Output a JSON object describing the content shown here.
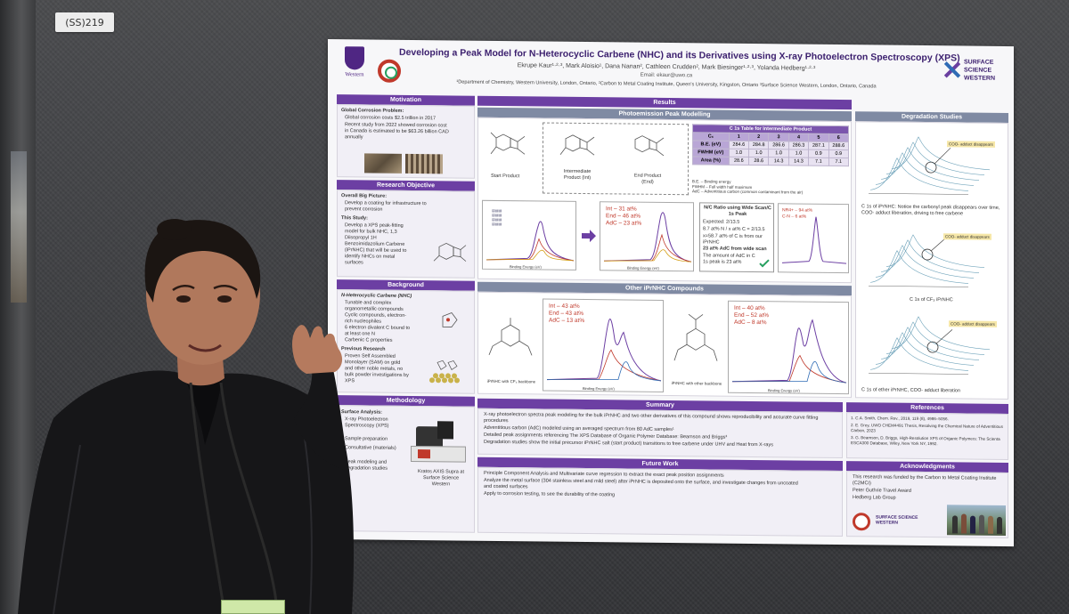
{
  "board_tag": "(SS)219",
  "poster": {
    "title": "Developing a Peak Model for N-Heterocyclic Carbene (NHC) and its Derivatives using X-ray Photoelectron Spectroscopy (XPS)",
    "authors": "Ekrupe Kaur¹·²·³, Mark Aloisio¹, Dana Nanan², Cathleen Crudden², Mark Biesinger¹·²·³, Yolanda Hedberg¹·²·³",
    "email": "Email: ekaur@uwo.ca",
    "departments": "¹Department of Chemistry, Western University, London, Ontario, ²Carbon to Metal Coating Institute, Queen's University, Kingston, Ontario ³Surface Science Western, London, Ontario, Canada",
    "logo_western": "Western",
    "logo_ssw": "SURFACE SCIENCE WESTERN",
    "sections": {
      "motivation": "Motivation",
      "research_objective": "Research Objective",
      "background": "Background",
      "methodology": "Methodology",
      "results": "Results",
      "photoemission": "Photoemission Peak Modelling",
      "other_compounds": "Other iPrNHC Compounds",
      "degradation": "Degradation Studies",
      "summary": "Summary",
      "future_work": "Future Work",
      "references": "References",
      "acknowledgments": "Acknowledgments"
    },
    "motivation": {
      "heading": "Global Corrosion Problem:",
      "lines": [
        "Global corrosion costs $2.5 trillion in 2017",
        "Recent study from 2022 showed corrosion cost in Canada is estimated to be $63.26 billion CAD annually"
      ]
    },
    "objective": {
      "heading": "Overall Big Picture:",
      "line1": "Develop a coating for infrastructure to prevent corrosion",
      "heading2": "This Study:",
      "line2": "Develop a XPS peak-fitting model for bulk NHC, 1,3 Diisopropyl 1H Benzoimidazolium Carbene (iPrNHC) that will be used to identify NHCs on metal surfaces"
    },
    "background": {
      "heading": "N-Heterocyclic Carbene (NHC)",
      "lines": [
        "Tunable and complex organometallic compounds",
        "Cyclic compounds, electron-rich nucleophiles",
        "6 electron divalent C bound to at least one N",
        "Carbenic C properties"
      ],
      "heading2": "Previous Research",
      "line2": "Proven Self Assembled Monolayer (SAM) on gold and other noble metals, no bulk powder investigations by XPS"
    },
    "methodology": {
      "heading": "Surface Analysis:",
      "lines": [
        "X-ray Photoelectron Spectroscopy (XPS)",
        "Sample preparation",
        "Consultative (materials)",
        "Peak modeling and degradation studies"
      ],
      "instrument": "Kratos AXIS Supra at Surface Science Western"
    },
    "photoemission": {
      "labels": [
        "Start Product",
        "Intermediate Product (Int)",
        "End Product (End)"
      ],
      "table_title": "C 1s Table for Intermediate Product",
      "table_header": [
        "Cₓ",
        "1",
        "2",
        "3",
        "4",
        "5",
        "6"
      ],
      "table_rows": [
        [
          "B.E. (eV)",
          "284.6",
          "284.8",
          "286.6",
          "286.3",
          "287.1",
          "288.6"
        ],
        [
          "FWHM (eV)",
          "1.0",
          "1.0",
          "1.0",
          "1.0",
          "0.9",
          "0.9"
        ],
        [
          "Area (%)",
          "28.6",
          "28.6",
          "14.3",
          "14.3",
          "7.1",
          "7.1"
        ]
      ],
      "table_notes": [
        "B.E. – Binding energy",
        "FWHM – Full width half maximum",
        "AdC – Adventitious carbon (common contaminant from the air)"
      ],
      "plot2_legend": [
        "Int – 31 at%",
        "End – 46 at%",
        "AdC – 23 at%"
      ],
      "ratio_title": "N/C Ratio using Wide Scan/C 1s Peak",
      "ratio_lines": [
        "Expected: 2/13.5",
        "8.7 at% N / x at% C = 2/13.5",
        "x=58.7 at% of C is from our iPrNHC",
        "23 at% AdC from wide scan",
        "The amount of AdC in C 1s peak is 23 at%"
      ],
      "plot3_legend": [
        "NR4+ – 94 at%",
        "C-N – 6 at%"
      ],
      "xlabel": "Binding Energy (eV)"
    },
    "other": {
      "label1": "iPrNHC with CF₃ backbone",
      "label2": "iPrNHC with ether backbone",
      "legend1": [
        "Int – 43 at%",
        "End – 43 at%",
        "AdC – 13 at%"
      ],
      "legend2": [
        "Int – 40 at%",
        "End – 52 at%",
        "AdC – 8 at%"
      ]
    },
    "degradation": {
      "annot1": "COO- adduct disappears",
      "cap1": "C 1s of iPrNHC: Notice the carbonyl peak disappears over time, COO- adduct liberation, driving to free carbene",
      "annot2": "COO- adduct disappears",
      "cap2": "C 1s of CF₃ iPrNHC",
      "annot3": "COO- adduct disappears",
      "cap3": "C 1s of ether iPrNHC, COO- adduct liberation"
    },
    "summary": [
      "X-ray photoelectron spectra peak modeling for the bulk iPrNHC and two other derivatives of this compound shows reproducibility and accurate curve fitting procedures",
      "Adventitious carbon (AdC) modeled using an averaged spectrum from 80 AdC samples¹",
      "Detailed peak assignments referencing The XPS Database of Organic Polymer Database: Beamson and Briggs³",
      "Degradation studies show the initial precursor iPrNHC salt (start product) transitions to free carbene under UHV and Heat from X-rays"
    ],
    "future": [
      "Principle Component Analysis and Multivariate curve regression to extract the exact peak position assignments",
      "Analyze the metal surface (304 stainless steel and mild steel) after iPrNHC is deposited onto the surface, and investigate changes from uncoated and coated surfaces",
      "Apply to corrosion testing, to see the durability of the coating"
    ],
    "references": [
      "1. C.A. Smith, Chem. Rev., 2019, 119 (8), 4986–5056.",
      "2. E. Grey, UWO CHEM4491 Thesis, Resolving the Chemical Nature of Adventitious Carbon, 2023",
      "3. G. Beamson, D. Briggs, High-Resolution XPS of Organic Polymers: The Scienta ESCA300 Database, Wiley, New York NY, 1992."
    ],
    "acknowledgments": [
      "This research was funded by the Carbon to Metal Coating Institute (C2MCI)",
      "Peter Guthrie Travel Award",
      "Hedberg Lab Group"
    ]
  }
}
